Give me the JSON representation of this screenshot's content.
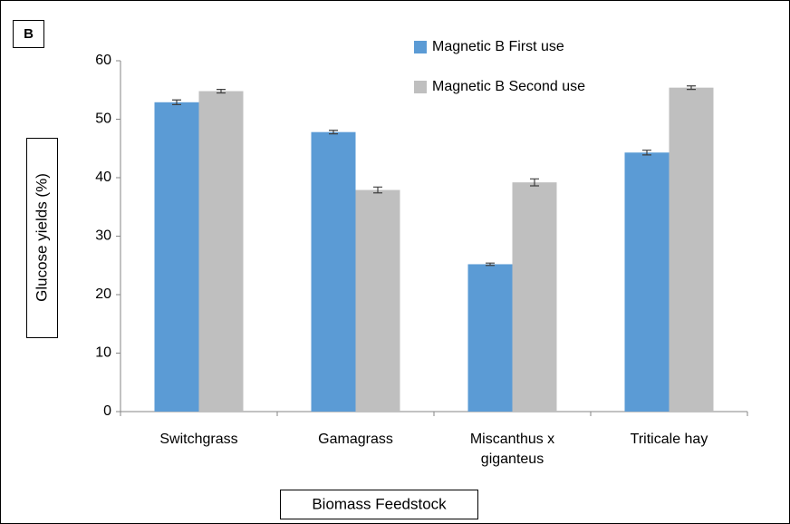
{
  "chart_data": {
    "type": "bar",
    "panel_label": "B",
    "ylabel": "Glucose yields (%)",
    "xlabel": "Biomass Feedstock",
    "categories": [
      "Switchgrass",
      "Gamagrass",
      "Miscanthus x giganteus",
      "Triticale hay"
    ],
    "series": [
      {
        "name": "Magnetic B First use",
        "color": "#5b9bd5",
        "values": [
          52.9,
          47.8,
          25.2,
          44.3
        ],
        "errors": [
          0.4,
          0.3,
          0.2,
          0.4
        ]
      },
      {
        "name": "Magnetic B Second use",
        "color": "#bfbfbf",
        "values": [
          54.8,
          37.9,
          39.2,
          55.4
        ],
        "errors": [
          0.3,
          0.5,
          0.6,
          0.3
        ]
      }
    ],
    "ylim": [
      0,
      60
    ],
    "yticks": [
      0,
      10,
      20,
      30,
      40,
      50,
      60
    ],
    "grid": false,
    "legend": "top"
  }
}
